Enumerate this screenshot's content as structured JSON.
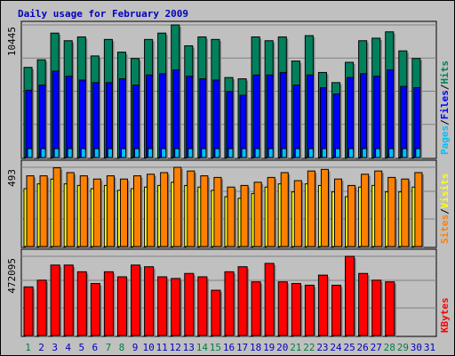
{
  "chart_data": {
    "title": "Daily usage for February 2009",
    "type": "bar",
    "days": [
      "1",
      "2",
      "3",
      "4",
      "5",
      "6",
      "7",
      "8",
      "9",
      "10",
      "11",
      "12",
      "13",
      "14",
      "15",
      "16",
      "17",
      "18",
      "19",
      "20",
      "21",
      "22",
      "23",
      "24",
      "25",
      "26",
      "27",
      "28",
      "29",
      "30",
      "31"
    ],
    "weekend_days": [
      "1",
      "7",
      "8",
      "14",
      "15",
      "21",
      "22",
      "28",
      "29"
    ],
    "panels": [
      {
        "id": "hits_files_pages",
        "ymax": 10445,
        "tick_label": "10445",
        "legend": [
          "Pages",
          "Files",
          "Hits"
        ],
        "series": [
          {
            "name": "Hits",
            "color": "#00805c",
            "values": [
              7100,
              7700,
              9800,
              9200,
              9500,
              8000,
              9300,
              8300,
              7800,
              9300,
              9800,
              10445,
              8800,
              9500,
              9300,
              6300,
              6200,
              9500,
              9200,
              9500,
              7600,
              9600,
              6700,
              5900,
              7500,
              9200,
              9400,
              9900,
              8400,
              7800
            ]
          },
          {
            "name": "Files",
            "color": "#0000ff",
            "values": [
              5300,
              5700,
              6800,
              6400,
              6100,
              5900,
              5900,
              6200,
              5700,
              6500,
              6600,
              6900,
              6400,
              6200,
              6100,
              5200,
              4900,
              6500,
              6500,
              6700,
              5700,
              6500,
              5500,
              5000,
              6300,
              6600,
              6400,
              6900,
              5600,
              5500
            ]
          },
          {
            "name": "Pages",
            "color": "#00c0ff",
            "values": [
              500,
              400,
              600,
              600,
              550,
              550,
              550,
              650,
              700,
              600,
              650,
              700,
              550,
              550,
              550,
              400,
              400,
              550,
              550,
              550,
              550,
              550,
              450,
              450,
              550,
              600,
              550,
              600,
              550,
              700
            ]
          }
        ]
      },
      {
        "id": "sites_visits",
        "ymax": 493,
        "tick_label": "493",
        "legend": [
          "Sites",
          "Visits"
        ],
        "series": [
          {
            "name": "Visits",
            "color": "#ff8000",
            "values": [
              440,
              440,
              490,
              460,
              440,
              420,
              440,
              420,
              440,
              450,
              460,
              493,
              470,
              440,
              430,
              370,
              380,
              400,
              430,
              460,
              410,
              470,
              480,
              420,
              380,
              450,
              470,
              430,
              420,
              460
            ]
          },
          {
            "name": "Sites",
            "color": "#ffff00",
            "values": [
              360,
              390,
              420,
              390,
              380,
              360,
              380,
              350,
              360,
              370,
              380,
              400,
              380,
              370,
              350,
              310,
              300,
              330,
              370,
              390,
              340,
              390,
              380,
              340,
              310,
              370,
              380,
              340,
              340,
              370
            ]
          }
        ]
      },
      {
        "id": "kbytes",
        "ymax": 472095,
        "tick_label": "472095",
        "legend": [
          "KBytes"
        ],
        "series": [
          {
            "name": "KBytes",
            "color": "#ff0000",
            "values": [
              290000,
              330000,
              420000,
              420000,
              380000,
              310000,
              380000,
              350000,
              420000,
              410000,
              350000,
              340000,
              370000,
              350000,
              270000,
              380000,
              410000,
              320000,
              430000,
              320000,
              310000,
              300000,
              360000,
              300000,
              472095,
              370000,
              330000,
              320000,
              null,
              null
            ]
          }
        ]
      }
    ]
  },
  "colors": {
    "weekday_label": "#0000c0",
    "weekend_label": "#008040",
    "title": "#0000c0"
  }
}
